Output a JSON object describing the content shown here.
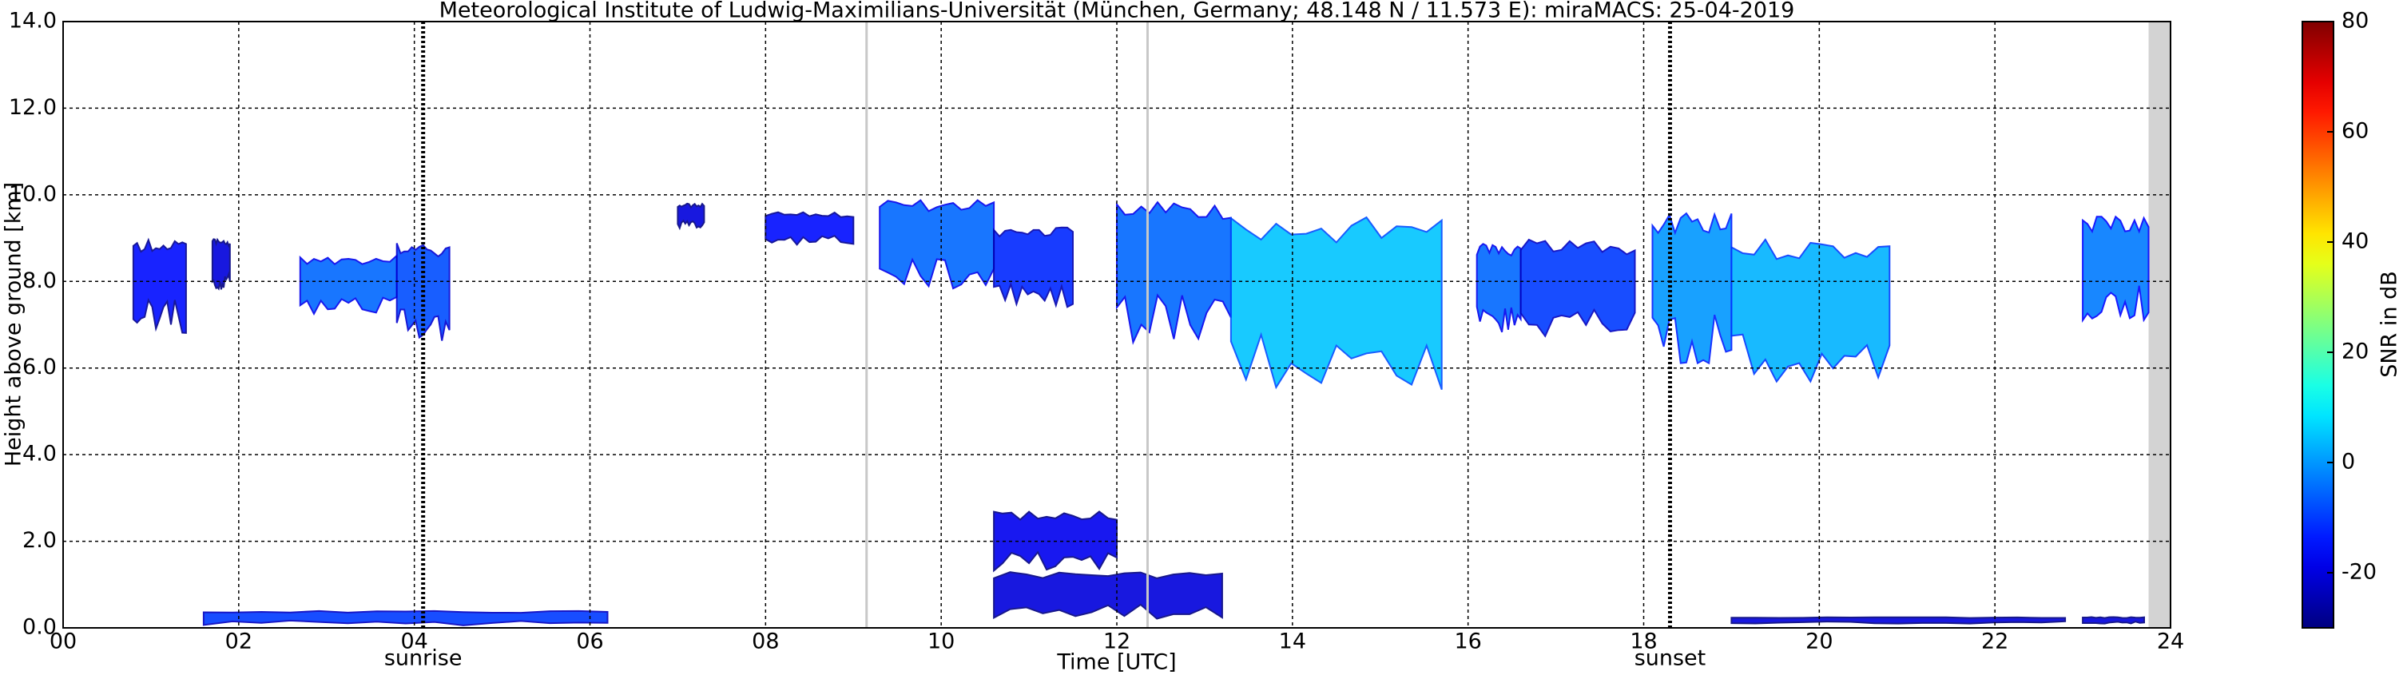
{
  "chart_data": {
    "type": "radar",
    "title": "Meteorological Institute of Ludwig-Maximilians-Universität (München, Germany; 48.148 N / 11.573 E):    miraMACS: 25-04-2019",
    "x_label": "Time [UTC]",
    "y_label": "Height above ground [km]",
    "xlim": [
      0,
      24
    ],
    "ylim": [
      0,
      14
    ],
    "xticks": [
      {
        "value": 0,
        "label": "00"
      },
      {
        "value": 2,
        "label": "02"
      },
      {
        "value": 4,
        "label": "04"
      },
      {
        "value": 6,
        "label": "06"
      },
      {
        "value": 8,
        "label": "08"
      },
      {
        "value": 10,
        "label": "10"
      },
      {
        "value": 12,
        "label": "12"
      },
      {
        "value": 14,
        "label": "14"
      },
      {
        "value": 16,
        "label": "16"
      },
      {
        "value": 18,
        "label": "18"
      },
      {
        "value": 20,
        "label": "20"
      },
      {
        "value": 22,
        "label": "22"
      },
      {
        "value": 24,
        "label": "24"
      }
    ],
    "yticks": [
      {
        "value": 0,
        "label": "0.0"
      },
      {
        "value": 2,
        "label": "2.0"
      },
      {
        "value": 4,
        "label": "4.0"
      },
      {
        "value": 6,
        "label": "6.0"
      },
      {
        "value": 8,
        "label": "8.0"
      },
      {
        "value": 10,
        "label": "10.0"
      },
      {
        "value": 12,
        "label": "12.0"
      },
      {
        "value": 14,
        "label": "14.0"
      }
    ],
    "grid": true,
    "colorbar": {
      "label": "SNR in dB",
      "clim": [
        -30,
        80
      ],
      "ticks": [
        -20,
        0,
        20,
        40,
        60,
        80
      ]
    },
    "events": [
      {
        "name": "sunrise",
        "x": 4.1
      },
      {
        "name": "sunset",
        "x": 18.3
      }
    ],
    "gray_lines": [
      9.15,
      12.35
    ],
    "no_data": [
      23.75,
      24
    ],
    "echoes": [
      {
        "x": [
          0.8,
          1.4
        ],
        "y": [
          6.8,
          9.0
        ],
        "snr": -15
      },
      {
        "x": [
          1.7,
          1.9
        ],
        "y": [
          7.8,
          9.0
        ],
        "snr": -20
      },
      {
        "x": [
          2.7,
          3.8
        ],
        "y": [
          7.2,
          8.6
        ],
        "snr": -5
      },
      {
        "x": [
          3.8,
          4.4
        ],
        "y": [
          6.6,
          8.9
        ],
        "snr": -8
      },
      {
        "x": [
          7.0,
          7.3
        ],
        "y": [
          9.2,
          9.8
        ],
        "snr": -20
      },
      {
        "x": [
          8.0,
          9.0
        ],
        "y": [
          8.8,
          9.6
        ],
        "snr": -15
      },
      {
        "x": [
          9.3,
          10.6
        ],
        "y": [
          7.8,
          9.9
        ],
        "snr": -5
      },
      {
        "x": [
          10.6,
          11.5
        ],
        "y": [
          7.4,
          9.3
        ],
        "snr": -12
      },
      {
        "x": [
          12.0,
          13.3
        ],
        "y": [
          6.5,
          9.9
        ],
        "snr": -5
      },
      {
        "x": [
          13.3,
          15.7
        ],
        "y": [
          5.5,
          9.5
        ],
        "snr": 5
      },
      {
        "x": [
          16.1,
          16.6
        ],
        "y": [
          6.8,
          8.9
        ],
        "snr": -5
      },
      {
        "x": [
          16.6,
          17.9
        ],
        "y": [
          6.5,
          9.0
        ],
        "snr": -10
      },
      {
        "x": [
          18.1,
          19.0
        ],
        "y": [
          6.0,
          9.6
        ],
        "snr": 0
      },
      {
        "x": [
          19.0,
          20.8
        ],
        "y": [
          5.6,
          9.0
        ],
        "snr": 3
      },
      {
        "x": [
          23.0,
          23.75
        ],
        "y": [
          7.1,
          9.5
        ],
        "snr": -3
      },
      {
        "x": [
          10.6,
          12.0
        ],
        "y": [
          1.3,
          2.7
        ],
        "snr": -18
      },
      {
        "x": [
          10.6,
          13.2
        ],
        "y": [
          0.2,
          1.3
        ],
        "snr": -20
      },
      {
        "x": [
          1.6,
          6.2
        ],
        "y": [
          0.05,
          0.4
        ],
        "snr": -10
      },
      {
        "x": [
          19.0,
          22.8
        ],
        "y": [
          0.1,
          0.25
        ],
        "snr": -20
      },
      {
        "x": [
          23.0,
          23.7
        ],
        "y": [
          0.1,
          0.25
        ],
        "snr": -20
      }
    ]
  }
}
